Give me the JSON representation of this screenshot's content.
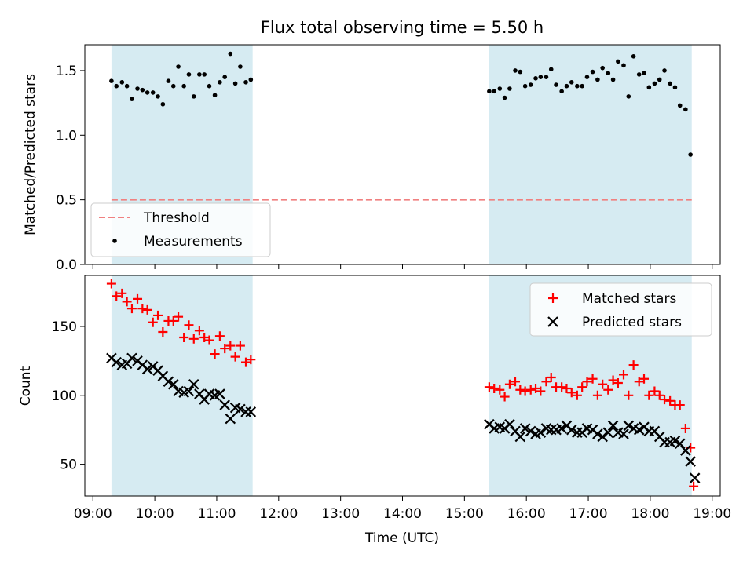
{
  "chart_data": [
    {
      "type": "scatter",
      "title": "Flux total observing time = 5.50 h",
      "xlabel": "",
      "ylabel": "Matched/Predicted stars",
      "xlim": [
        8.87,
        19.13
      ],
      "ylim": [
        0.0,
        1.7
      ],
      "yticks": [
        0.0,
        0.5,
        1.0,
        1.5
      ],
      "ytick_labels": [
        "0.0",
        "0.5",
        "1.0",
        "1.5"
      ],
      "x_axis": "time of day (hours, UTC)",
      "shaded_intervals": [
        [
          9.3,
          11.58
        ],
        [
          15.4,
          18.67
        ]
      ],
      "shade_color": "#add8e6",
      "grid": false,
      "legend_position": "lower-left",
      "series": [
        {
          "name": "Threshold",
          "kind": "dashed-line",
          "color": "#f08080",
          "x": [
            9.3,
            18.67
          ],
          "y": [
            0.5,
            0.5
          ]
        },
        {
          "name": "Measurements",
          "kind": "points",
          "color": "#000000",
          "x": [
            9.3,
            9.38,
            9.47,
            9.55,
            9.63,
            9.72,
            9.8,
            9.88,
            9.97,
            10.05,
            10.13,
            10.22,
            10.3,
            10.38,
            10.47,
            10.55,
            10.63,
            10.72,
            10.8,
            10.88,
            10.97,
            11.05,
            11.13,
            11.22,
            11.3,
            11.38,
            11.47,
            11.55,
            15.4,
            15.48,
            15.57,
            15.65,
            15.73,
            15.82,
            15.9,
            15.98,
            16.07,
            16.15,
            16.23,
            16.32,
            16.4,
            16.48,
            16.57,
            16.65,
            16.73,
            16.82,
            16.9,
            16.98,
            17.07,
            17.15,
            17.23,
            17.32,
            17.4,
            17.48,
            17.57,
            17.65,
            17.73,
            17.82,
            17.9,
            17.98,
            18.07,
            18.15,
            18.23,
            18.32,
            18.4,
            18.48,
            18.57,
            18.65
          ],
          "y": [
            1.42,
            1.38,
            1.41,
            1.38,
            1.28,
            1.36,
            1.35,
            1.33,
            1.33,
            1.3,
            1.24,
            1.42,
            1.38,
            1.53,
            1.38,
            1.47,
            1.3,
            1.47,
            1.47,
            1.38,
            1.31,
            1.41,
            1.45,
            1.63,
            1.4,
            1.53,
            1.41,
            1.43,
            1.34,
            1.34,
            1.36,
            1.29,
            1.36,
            1.5,
            1.49,
            1.38,
            1.39,
            1.44,
            1.45,
            1.45,
            1.51,
            1.39,
            1.34,
            1.38,
            1.41,
            1.38,
            1.38,
            1.45,
            1.49,
            1.43,
            1.52,
            1.48,
            1.43,
            1.57,
            1.54,
            1.3,
            1.61,
            1.47,
            1.48,
            1.37,
            1.4,
            1.43,
            1.5,
            1.4,
            1.37,
            1.23,
            1.2,
            0.85
          ]
        }
      ]
    },
    {
      "type": "scatter",
      "title": "",
      "xlabel": "Time (UTC)",
      "ylabel": "Count",
      "xlim": [
        8.87,
        19.13
      ],
      "ylim": [
        27,
        187
      ],
      "yticks": [
        50,
        100,
        150
      ],
      "ytick_labels": [
        "50",
        "100",
        "150"
      ],
      "xticks": [
        9,
        10,
        11,
        12,
        13,
        14,
        15,
        16,
        17,
        18,
        19
      ],
      "xtick_labels": [
        "09:00",
        "10:00",
        "11:00",
        "12:00",
        "13:00",
        "14:00",
        "15:00",
        "16:00",
        "17:00",
        "18:00",
        "19:00"
      ],
      "shaded_intervals": [
        [
          9.3,
          11.58
        ],
        [
          15.4,
          18.67
        ]
      ],
      "shade_color": "#add8e6",
      "grid": false,
      "legend_position": "upper-right",
      "series": [
        {
          "name": "Matched stars",
          "kind": "plus",
          "color": "#ff0000",
          "x": [
            9.3,
            9.38,
            9.47,
            9.55,
            9.63,
            9.72,
            9.8,
            9.88,
            9.97,
            10.05,
            10.13,
            10.22,
            10.3,
            10.38,
            10.47,
            10.55,
            10.63,
            10.72,
            10.8,
            10.88,
            10.97,
            11.05,
            11.13,
            11.22,
            11.3,
            11.38,
            11.47,
            11.55,
            15.4,
            15.48,
            15.57,
            15.65,
            15.73,
            15.82,
            15.9,
            15.98,
            16.07,
            16.15,
            16.23,
            16.32,
            16.4,
            16.48,
            16.57,
            16.65,
            16.73,
            16.82,
            16.9,
            16.98,
            17.07,
            17.15,
            17.23,
            17.32,
            17.4,
            17.48,
            17.57,
            17.65,
            17.73,
            17.82,
            17.9,
            17.98,
            18.07,
            18.15,
            18.23,
            18.32,
            18.4,
            18.48,
            18.57,
            18.65
          ],
          "y": [
            181,
            172,
            174,
            168,
            163,
            170,
            163,
            162,
            153,
            158,
            146,
            154,
            154,
            157,
            142,
            151,
            141,
            147,
            142,
            140,
            130,
            143,
            134,
            136,
            128,
            136,
            124,
            126,
            106,
            105,
            104,
            99,
            108,
            110,
            104,
            103,
            104,
            105,
            103,
            110,
            113,
            106,
            106,
            105,
            102,
            100,
            106,
            110,
            112,
            100,
            108,
            104,
            111,
            109,
            115,
            100,
            122,
            110,
            112,
            100,
            103,
            100,
            97,
            96,
            93,
            93,
            76,
            62
          ],
          "extra_point": {
            "x": 18.7,
            "y": 34
          }
        },
        {
          "name": "Predicted stars",
          "kind": "x",
          "color": "#000000",
          "x": [
            9.3,
            9.38,
            9.47,
            9.55,
            9.63,
            9.72,
            9.8,
            9.88,
            9.97,
            10.05,
            10.13,
            10.22,
            10.3,
            10.38,
            10.47,
            10.55,
            10.63,
            10.72,
            10.8,
            10.88,
            10.97,
            11.05,
            11.13,
            11.22,
            11.3,
            11.38,
            11.47,
            11.55,
            15.4,
            15.48,
            15.57,
            15.65,
            15.73,
            15.82,
            15.9,
            15.98,
            16.07,
            16.15,
            16.23,
            16.32,
            16.4,
            16.48,
            16.57,
            16.65,
            16.73,
            16.82,
            16.9,
            16.98,
            17.07,
            17.15,
            17.23,
            17.32,
            17.4,
            17.48,
            17.57,
            17.65,
            17.73,
            17.82,
            17.9,
            17.98,
            18.07,
            18.15,
            18.23,
            18.32,
            18.4,
            18.48,
            18.57,
            18.65
          ],
          "y": [
            127,
            124,
            122,
            123,
            127,
            125,
            122,
            119,
            121,
            118,
            114,
            110,
            108,
            103,
            102,
            103,
            108,
            101,
            97,
            101,
            100,
            101,
            93,
            83,
            91,
            90,
            88,
            88,
            79,
            76,
            77,
            76,
            79,
            74,
            70,
            76,
            74,
            72,
            73,
            76,
            75,
            75,
            76,
            78,
            75,
            73,
            73,
            76,
            75,
            72,
            70,
            73,
            78,
            73,
            72,
            78,
            76,
            75,
            77,
            74,
            74,
            70,
            66,
            66,
            67,
            65,
            60,
            52
          ],
          "extra_point": {
            "x": 18.72,
            "y": 40
          }
        }
      ]
    }
  ]
}
